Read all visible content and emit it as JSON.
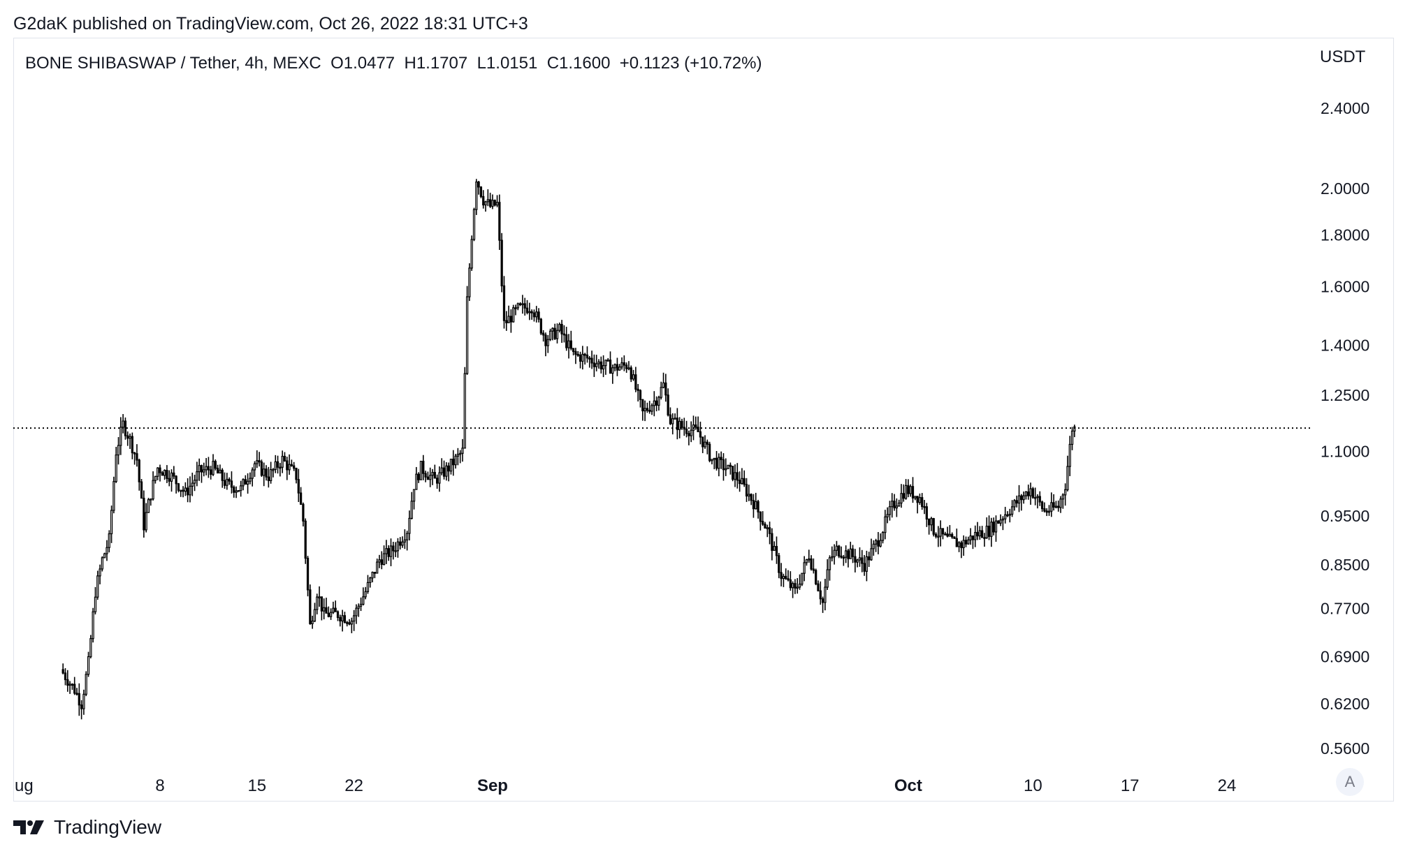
{
  "header": {
    "publisher_line": "G2daK published on TradingView.com, Oct 26, 2022 18:31 UTC+3"
  },
  "legend": {
    "symbol": "BONE SHIBASWAP / Tether, 4h, MEXC",
    "open": "O1.0477",
    "high": "H1.1707",
    "low": "L1.0151",
    "close": "C1.1600",
    "change": "+0.1123 (+10.72%)"
  },
  "price_axis": {
    "currency": "USDT"
  },
  "buttons": {
    "auto_scale": "A"
  },
  "footer": {
    "brand": "TradingView"
  },
  "colors": {
    "candle": "#000000",
    "text": "#131722",
    "grid_border": "#e0e3eb",
    "last_price_line": "#000000"
  },
  "chart_data": {
    "type": "candlestick",
    "title": "BONE SHIBASWAP / Tether, 4h, MEXC",
    "ylabel": "USDT",
    "y_scale": "log",
    "ylim": [
      0.53,
      2.65
    ],
    "y_ticks": [
      "2.4000",
      "2.0000",
      "1.8000",
      "1.6000",
      "1.4000",
      "1.2500",
      "1.1000",
      "0.9500",
      "0.8500",
      "0.7700",
      "0.6900",
      "0.6200",
      "0.5600"
    ],
    "x_ticks": [
      {
        "label": "ug",
        "day": 1
      },
      {
        "label": "8",
        "day": 8
      },
      {
        "label": "15",
        "day": 15
      },
      {
        "label": "22",
        "day": 22
      },
      {
        "label": "Sep",
        "day": 32,
        "bold": true
      },
      {
        "label": "Oct",
        "day": 62,
        "bold": true
      },
      {
        "label": "10",
        "day": 71
      },
      {
        "label": "17",
        "day": 78
      },
      {
        "label": "24",
        "day": 85
      }
    ],
    "x_axis": "2022-08-01 to 2022-10-26, 4h candles",
    "last_price": 1.16,
    "price_path": [
      [
        "2022-08-01",
        0.67
      ],
      [
        "2022-08-02",
        0.64
      ],
      [
        "2022-08-02T12:00",
        0.62
      ],
      [
        "2022-08-03",
        0.68
      ],
      [
        "2022-08-03T12:00",
        0.8
      ],
      [
        "2022-08-04",
        0.86
      ],
      [
        "2022-08-04T12:00",
        0.9
      ],
      [
        "2022-08-05",
        1.1
      ],
      [
        "2022-08-05T12:00",
        1.17
      ],
      [
        "2022-08-06",
        1.13
      ],
      [
        "2022-08-06T12:00",
        1.08
      ],
      [
        "2022-08-07",
        0.93
      ],
      [
        "2022-08-07T12:00",
        1.0
      ],
      [
        "2022-08-08",
        1.06
      ],
      [
        "2022-08-09",
        1.04
      ],
      [
        "2022-08-10",
        1.0
      ],
      [
        "2022-08-11",
        1.05
      ],
      [
        "2022-08-12",
        1.06
      ],
      [
        "2022-08-13",
        1.02
      ],
      [
        "2022-08-14",
        1.01
      ],
      [
        "2022-08-15",
        1.07
      ],
      [
        "2022-08-16",
        1.04
      ],
      [
        "2022-08-17",
        1.08
      ],
      [
        "2022-08-18",
        1.04
      ],
      [
        "2022-08-18T12:00",
        0.94
      ],
      [
        "2022-08-19",
        0.74
      ],
      [
        "2022-08-19T12:00",
        0.8
      ],
      [
        "2022-08-20",
        0.76
      ],
      [
        "2022-08-21",
        0.76
      ],
      [
        "2022-08-22",
        0.75
      ],
      [
        "2022-08-23",
        0.8
      ],
      [
        "2022-08-24",
        0.86
      ],
      [
        "2022-08-25",
        0.88
      ],
      [
        "2022-08-26",
        0.92
      ],
      [
        "2022-08-26T12:00",
        1.02
      ],
      [
        "2022-08-27",
        1.06
      ],
      [
        "2022-08-28",
        1.03
      ],
      [
        "2022-08-29",
        1.06
      ],
      [
        "2022-08-30",
        1.1
      ],
      [
        "2022-08-30T08:00",
        1.55
      ],
      [
        "2022-08-30T16:00",
        1.8
      ],
      [
        "2022-08-31",
        2.05
      ],
      [
        "2022-08-31T12:00",
        1.95
      ],
      [
        "2022-09-01",
        1.92
      ],
      [
        "2022-09-01T12:00",
        1.93
      ],
      [
        "2022-09-02",
        1.47
      ],
      [
        "2022-09-03",
        1.52
      ],
      [
        "2022-09-04",
        1.53
      ],
      [
        "2022-09-05",
        1.42
      ],
      [
        "2022-09-06",
        1.45
      ],
      [
        "2022-09-07",
        1.37
      ],
      [
        "2022-09-08",
        1.36
      ],
      [
        "2022-09-09",
        1.34
      ],
      [
        "2022-09-10",
        1.33
      ],
      [
        "2022-09-11",
        1.34
      ],
      [
        "2022-09-12",
        1.2
      ],
      [
        "2022-09-13",
        1.24
      ],
      [
        "2022-09-13T12:00",
        1.28
      ],
      [
        "2022-09-14",
        1.18
      ],
      [
        "2022-09-15",
        1.16
      ],
      [
        "2022-09-16",
        1.15
      ],
      [
        "2022-09-17",
        1.08
      ],
      [
        "2022-09-18",
        1.06
      ],
      [
        "2022-09-19",
        1.03
      ],
      [
        "2022-09-20",
        0.98
      ],
      [
        "2022-09-21",
        0.92
      ],
      [
        "2022-09-22",
        0.83
      ],
      [
        "2022-09-23",
        0.8
      ],
      [
        "2022-09-24",
        0.87
      ],
      [
        "2022-09-25",
        0.78
      ],
      [
        "2022-09-25T12:00",
        0.86
      ],
      [
        "2022-09-26",
        0.88
      ],
      [
        "2022-09-27",
        0.87
      ],
      [
        "2022-09-28",
        0.85
      ],
      [
        "2022-09-29",
        0.9
      ],
      [
        "2022-09-30",
        0.97
      ],
      [
        "2022-10-01",
        1.01
      ],
      [
        "2022-10-02",
        0.99
      ],
      [
        "2022-10-03",
        0.92
      ],
      [
        "2022-10-04",
        0.9
      ],
      [
        "2022-10-05",
        0.89
      ],
      [
        "2022-10-06",
        0.91
      ],
      [
        "2022-10-07",
        0.92
      ],
      [
        "2022-10-08",
        0.95
      ],
      [
        "2022-10-09",
        0.98
      ],
      [
        "2022-10-10",
        1.01
      ],
      [
        "2022-10-11",
        0.96
      ],
      [
        "2022-10-12",
        0.97
      ],
      [
        "2022-10-12T12:00",
        1.02
      ],
      [
        "2022-10-13",
        1.16
      ]
    ]
  }
}
